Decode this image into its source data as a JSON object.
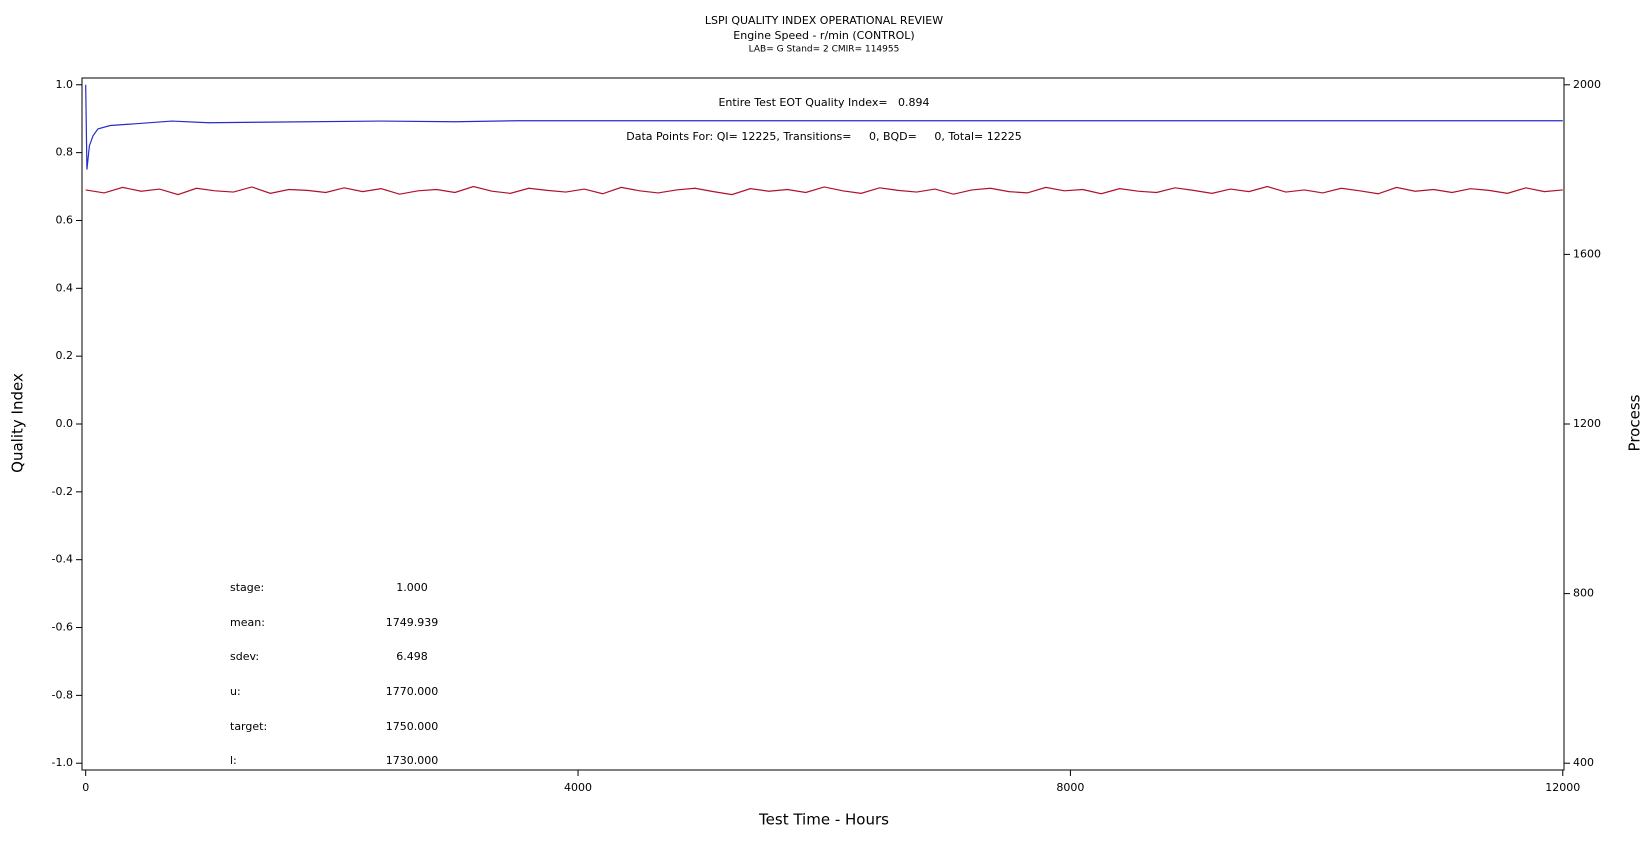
{
  "chart_data": {
    "type": "line",
    "title": "LSPI QUALITY INDEX OPERATIONAL REVIEW",
    "subtitle": "Engine Speed - r/min (CONTROL)",
    "subtitle2": "LAB= G Stand= 2 CMIR= 114955",
    "annotations": [
      "Entire Test EOT Quality Index=   0.894",
      "Data Points For: QI= 12225, Transitions=     0, BQD=     0, Total= 12225"
    ],
    "stats": [
      {
        "label": "stage:",
        "value": "1.000"
      },
      {
        "label": "mean:",
        "value": "1749.939"
      },
      {
        "label": "sdev:",
        "value": "6.498"
      },
      {
        "label": "u:",
        "value": "1770.000"
      },
      {
        "label": "target:",
        "value": "1750.000"
      },
      {
        "label": "l:",
        "value": "1730.000"
      }
    ],
    "xlabel": "Test Time - Hours",
    "ylabel": "Quality Index",
    "y2label": "Process",
    "xlim": [
      -30,
      12010
    ],
    "xticks": [
      0,
      4000,
      8000,
      12000
    ],
    "ylim": [
      -1.02,
      1.02
    ],
    "yticks": [
      {
        "value": -1,
        "label": "-1.0"
      },
      -0.8,
      -0.6,
      -0.4,
      -0.2,
      {
        "value": 0,
        "label": "0.0"
      },
      0.2,
      0.4,
      0.6,
      0.8,
      {
        "value": 1,
        "label": "1.0"
      }
    ],
    "y2lim": [
      384,
      2016
    ],
    "y2ticks": [
      400,
      800,
      1200,
      1600,
      2000
    ],
    "series": [
      {
        "color": "#b0102a",
        "axis": "y2",
        "x": [
          0,
          150,
          300,
          450,
          600,
          750,
          900,
          1050,
          1200,
          1350,
          1500,
          1650,
          1800,
          1950,
          2100,
          2250,
          2400,
          2550,
          2700,
          2850,
          3000,
          3150,
          3300,
          3450,
          3600,
          3750,
          3900,
          4050,
          4200,
          4350,
          4500,
          4650,
          4800,
          4950,
          5100,
          5250,
          5400,
          5550,
          5700,
          5850,
          6000,
          6150,
          6300,
          6450,
          6600,
          6750,
          6900,
          7050,
          7200,
          7350,
          7500,
          7650,
          7800,
          7950,
          8100,
          8250,
          8400,
          8550,
          8700,
          8850,
          9000,
          9150,
          9300,
          9450,
          9600,
          9750,
          9900,
          10050,
          10200,
          10350,
          10500,
          10650,
          10800,
          10950,
          11100,
          11250,
          11400,
          11550,
          11700,
          11850,
          12000
        ],
        "values": [
          1752,
          1745,
          1758,
          1749,
          1754,
          1741,
          1756,
          1750,
          1747,
          1759,
          1744,
          1753,
          1751,
          1746,
          1757,
          1748,
          1755,
          1742,
          1750,
          1753,
          1746,
          1760,
          1749,
          1744,
          1756,
          1751,
          1747,
          1754,
          1743,
          1758,
          1750,
          1745,
          1752,
          1756,
          1748,
          1741,
          1755,
          1749,
          1753,
          1746,
          1759,
          1750,
          1744,
          1757,
          1751,
          1747,
          1754,
          1742,
          1752,
          1756,
          1748,
          1745,
          1758,
          1750,
          1753,
          1743,
          1755,
          1749,
          1746,
          1757,
          1751,
          1744,
          1754,
          1748,
          1760,
          1747,
          1752,
          1745,
          1756,
          1750,
          1743,
          1758,
          1749,
          1753,
          1746,
          1755,
          1751,
          1744,
          1757,
          1748,
          1752
        ]
      },
      {
        "color": "#2a2acc",
        "x": [
          0,
          10,
          30,
          60,
          100,
          200,
          400,
          700,
          1000,
          1500,
          2400,
          3000,
          3500,
          6000,
          12000
        ],
        "values": [
          1.0,
          0.75,
          0.82,
          0.85,
          0.87,
          0.88,
          0.885,
          0.893,
          0.888,
          0.89,
          0.893,
          0.891,
          0.894,
          0.894,
          0.894
        ]
      }
    ]
  }
}
